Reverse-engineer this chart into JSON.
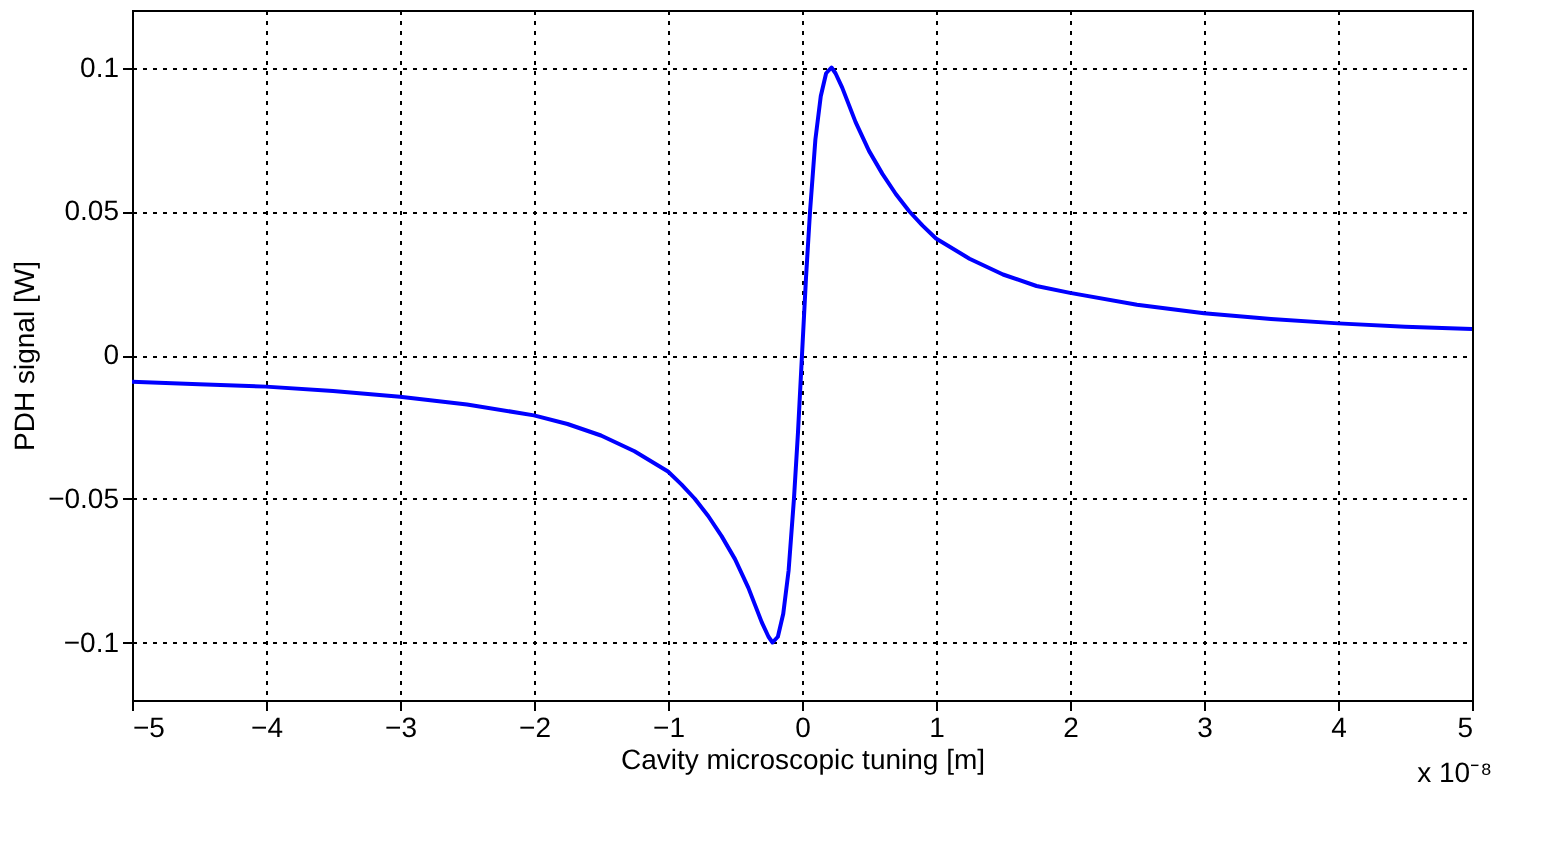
{
  "chart_data": {
    "type": "line",
    "xlabel": "Cavity microscopic tuning [m]",
    "ylabel": "PDH signal [W]",
    "annotations": [
      "x 10⁻⁸"
    ],
    "x": [
      -5,
      -4.5,
      -4,
      -3.5,
      -3,
      -2.5,
      -2,
      -1.75,
      -1.5,
      -1.25,
      -1,
      -0.9,
      -0.8,
      -0.7,
      -0.6,
      -0.5,
      -0.4,
      -0.35,
      -0.3,
      -0.25,
      -0.22,
      -0.18,
      -0.14,
      -0.1,
      -0.06,
      -0.03,
      0,
      0.03,
      0.06,
      0.1,
      0.14,
      0.18,
      0.22,
      0.25,
      0.3,
      0.35,
      0.4,
      0.5,
      0.6,
      0.7,
      0.8,
      0.9,
      1,
      1.25,
      1.5,
      1.75,
      2,
      2.5,
      3,
      3.5,
      4,
      4.5,
      5
    ],
    "series": [
      {
        "color": "#0000ff",
        "values": [
          -0.0093,
          -0.0102,
          -0.011,
          -0.0125,
          -0.0145,
          -0.0172,
          -0.021,
          -0.024,
          -0.028,
          -0.0335,
          -0.0405,
          -0.045,
          -0.05,
          -0.056,
          -0.063,
          -0.071,
          -0.081,
          -0.087,
          -0.093,
          -0.098,
          -0.1,
          -0.098,
          -0.09,
          -0.075,
          -0.05,
          -0.027,
          0,
          0.027,
          0.05,
          0.075,
          0.09,
          0.098,
          0.1,
          0.098,
          0.093,
          0.087,
          0.081,
          0.071,
          0.063,
          0.056,
          0.05,
          0.045,
          0.0405,
          0.0335,
          0.028,
          0.024,
          0.0216,
          0.0175,
          0.0145,
          0.0125,
          0.011,
          0.0098,
          0.009
        ]
      }
    ],
    "xlim": [
      -5,
      5
    ],
    "xticks": [
      -5,
      -4,
      -3,
      -2,
      -1,
      0,
      1,
      2,
      3,
      4,
      5
    ],
    "ylim": [
      -0.12,
      0.12
    ],
    "yticks": [
      -0.1,
      -0.05,
      0,
      0.05,
      0.1
    ],
    "grid": true,
    "marker": "none",
    "line_style": "solid"
  }
}
